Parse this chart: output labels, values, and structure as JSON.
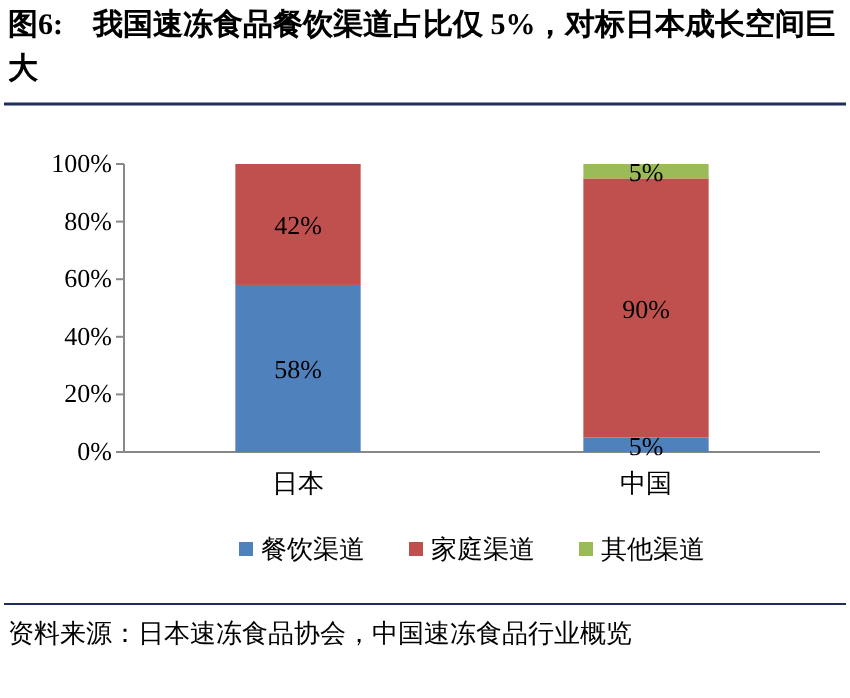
{
  "chart_data": {
    "type": "bar",
    "stacked": true,
    "title": "图6:　我国速冻食品餐饮渠道占比仅 5%，对标日本成长空间巨大",
    "categories": [
      "日本",
      "中国"
    ],
    "series": [
      {
        "name": "餐饮渠道",
        "color": "#4f81bd",
        "values": [
          58,
          5
        ],
        "value_labels": [
          "58%",
          "5%"
        ]
      },
      {
        "name": "家庭渠道",
        "color": "#c0504d",
        "values": [
          42,
          90
        ],
        "value_labels": [
          "42%",
          "90%"
        ]
      },
      {
        "name": "其他渠道",
        "color": "#9bbb59",
        "values": [
          null,
          5
        ],
        "value_labels": [
          null,
          "5%"
        ]
      }
    ],
    "ylim": [
      0,
      100
    ],
    "yticks": [
      {
        "value": 0,
        "label": "0%"
      },
      {
        "value": 20,
        "label": "20%"
      },
      {
        "value": 40,
        "label": "40%"
      },
      {
        "value": 60,
        "label": "60%"
      },
      {
        "value": 80,
        "label": "80%"
      },
      {
        "value": 100,
        "label": "100%"
      }
    ],
    "grid": false,
    "legend": "bottom",
    "annotations": [
      "资料来源：日本速冻食品协会，中国速冻食品行业概览"
    ]
  }
}
